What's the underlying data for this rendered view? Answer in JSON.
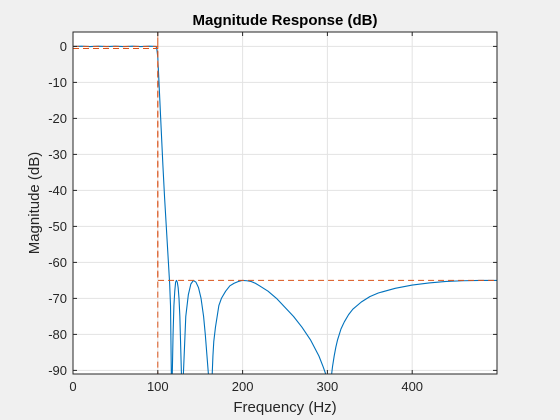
{
  "chart_data": {
    "type": "line",
    "title": "Magnitude Response (dB)",
    "xlabel": "Frequency (Hz)",
    "ylabel": "Magnitude (dB)",
    "xlim": [
      0,
      500
    ],
    "ylim": [
      -91,
      4
    ],
    "grid": true,
    "x_ticks": [
      0,
      100,
      200,
      300,
      400
    ],
    "y_ticks": [
      0,
      -10,
      -20,
      -30,
      -40,
      -50,
      -60,
      -70,
      -80,
      -90
    ],
    "colors": {
      "response": "#0072bd",
      "mask": "#d95319",
      "grid": "#e3e3e3",
      "background": "#f0f0f0"
    },
    "series": [
      {
        "role": "response",
        "x": [
          0,
          10,
          20,
          30,
          40,
          50,
          60,
          70,
          80,
          90,
          98,
          99,
          100,
          101,
          102,
          103,
          104,
          105,
          106,
          108,
          110,
          112,
          114,
          115,
          116,
          117,
          118,
          119,
          120,
          121,
          122,
          123,
          124,
          125,
          126,
          128,
          130,
          133,
          136,
          139,
          142,
          145,
          148,
          151,
          154,
          156,
          158,
          160,
          161,
          162,
          163,
          164,
          165,
          166,
          168,
          170,
          172,
          175,
          180,
          185,
          190,
          195,
          200,
          205,
          210,
          215,
          220,
          230,
          240,
          250,
          260,
          270,
          280,
          290,
          295,
          298,
          300,
          302,
          304,
          305,
          306,
          308,
          310,
          312,
          314,
          316,
          318,
          320,
          325,
          330,
          340,
          350,
          360,
          380,
          400,
          420,
          440,
          460,
          480,
          500
        ],
        "y": [
          0,
          0.05,
          -0.05,
          0.05,
          -0.05,
          0.05,
          -0.05,
          0.05,
          -0.05,
          0.05,
          0,
          -1,
          -3,
          -8,
          -13,
          -18,
          -23,
          -28,
          -33,
          -42,
          -50,
          -58,
          -66,
          -72,
          -92,
          -92,
          -80,
          -72,
          -68,
          -65.5,
          -65,
          -65.5,
          -67,
          -70,
          -75,
          -92,
          -92,
          -75,
          -69,
          -66,
          -65,
          -65.5,
          -67,
          -70,
          -75,
          -80,
          -86,
          -92,
          -92,
          -92,
          -92,
          -92,
          -86,
          -82,
          -78,
          -75,
          -72,
          -70,
          -68,
          -66.5,
          -65.8,
          -65.3,
          -65,
          -65.1,
          -65.3,
          -65.8,
          -66.5,
          -68,
          -70,
          -72.5,
          -75,
          -78,
          -81.5,
          -86,
          -89,
          -91,
          -92,
          -92,
          -92,
          -91,
          -89,
          -86,
          -83.5,
          -81.5,
          -80,
          -78.5,
          -77.5,
          -76.5,
          -74.5,
          -73,
          -71,
          -69.5,
          -68.5,
          -67.2,
          -66.3,
          -65.7,
          -65.3,
          -65.1,
          -65,
          -65
        ]
      },
      {
        "role": "mask",
        "x": [
          0,
          100,
          100,
          500
        ],
        "y": [
          0,
          0,
          -92,
          -92
        ]
      },
      {
        "role": "mask",
        "x": [
          0,
          100,
          100,
          100,
          500
        ],
        "y": [
          -0.6,
          -0.6,
          4,
          -65,
          -65
        ]
      }
    ]
  }
}
